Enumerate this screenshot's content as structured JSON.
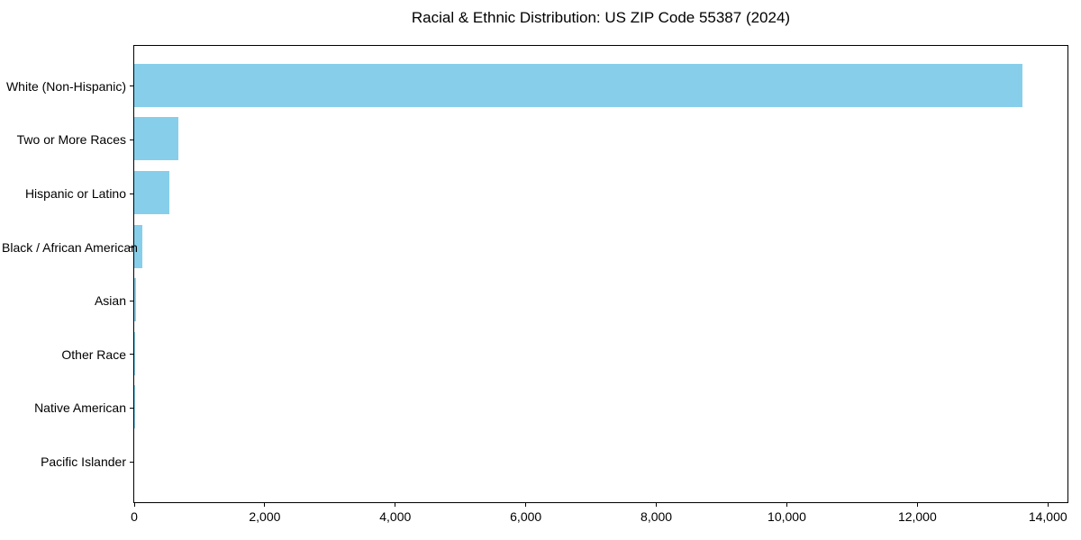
{
  "chart_data": {
    "type": "bar",
    "orientation": "horizontal",
    "title": "Racial & Ethnic Distribution: US ZIP Code 55387 (2024)",
    "categories": [
      "White (Non-Hispanic)",
      "Two or More Races",
      "Hispanic or Latino",
      "Black / African American",
      "Asian",
      "Other Race",
      "Native American",
      "Pacific Islander"
    ],
    "values": [
      13614,
      680,
      534,
      128,
      25,
      14,
      7,
      0
    ],
    "xlabel": "",
    "ylabel": "",
    "xlim": [
      0,
      14300
    ],
    "xticks": [
      0,
      2000,
      4000,
      6000,
      8000,
      10000,
      12000,
      14000
    ],
    "xtick_labels": [
      "0",
      "2,000",
      "4,000",
      "6,000",
      "8,000",
      "10,000",
      "12,000",
      "14,000"
    ],
    "bar_color": "#87CEEB",
    "grid": false,
    "legend": null
  }
}
